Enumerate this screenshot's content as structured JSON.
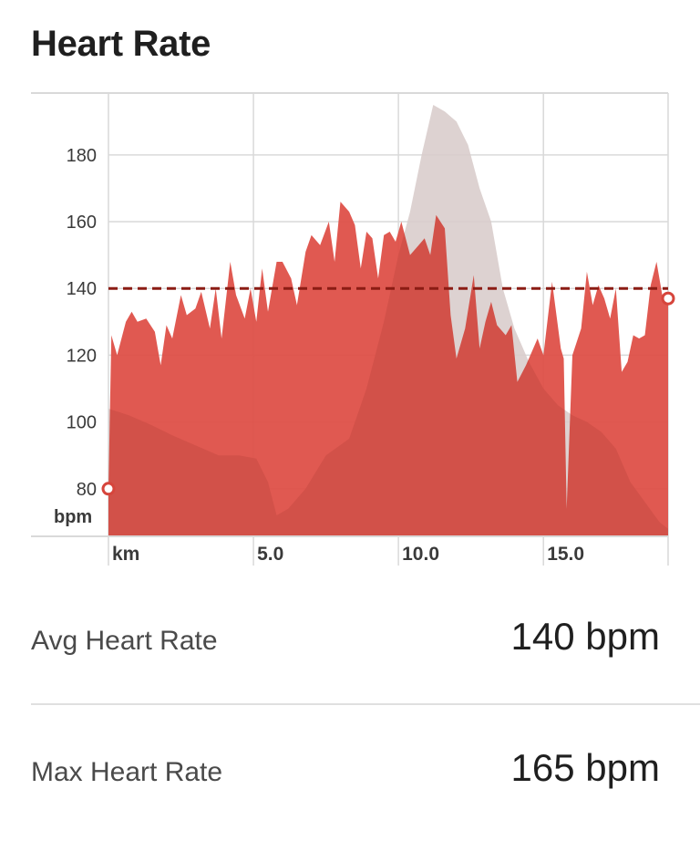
{
  "header": {
    "title": "Heart Rate"
  },
  "stats": [
    {
      "label": "Avg Heart Rate",
      "value": "140 bpm"
    },
    {
      "label": "Max Heart Rate",
      "value": "165 bpm"
    }
  ],
  "colors": {
    "hr_fill": "#de4c44",
    "elevation_fill": "#e8e8e8",
    "avg_line": "#8b1c14",
    "grid": "#d9d9d9",
    "marker_stroke": "#d6453c"
  },
  "chart_data": {
    "type": "area",
    "xlim": [
      0,
      19.3
    ],
    "ylim": [
      66,
      198
    ],
    "y_ticks": [
      "80",
      "100",
      "120",
      "140",
      "160",
      "180"
    ],
    "y_unit_label": "bpm",
    "x_unit_label": "km",
    "x_ticks": [
      "5.0",
      "10.0",
      "15.0"
    ],
    "avg_line": 140,
    "series": [
      {
        "values": [
          [
            0.0,
            80
          ],
          [
            0.1,
            126
          ],
          [
            0.3,
            120
          ],
          [
            0.6,
            130
          ],
          [
            0.8,
            133
          ],
          [
            1.0,
            130
          ],
          [
            1.3,
            131
          ],
          [
            1.6,
            127
          ],
          [
            1.8,
            117
          ],
          [
            2.0,
            129
          ],
          [
            2.2,
            125
          ],
          [
            2.5,
            138
          ],
          [
            2.7,
            132
          ],
          [
            3.0,
            134
          ],
          [
            3.2,
            139
          ],
          [
            3.5,
            128
          ],
          [
            3.7,
            140
          ],
          [
            3.9,
            125
          ],
          [
            4.2,
            148
          ],
          [
            4.4,
            138
          ],
          [
            4.7,
            131
          ],
          [
            4.9,
            140
          ],
          [
            5.1,
            130
          ],
          [
            5.3,
            146
          ],
          [
            5.5,
            133
          ],
          [
            5.8,
            148
          ],
          [
            6.0,
            148
          ],
          [
            6.3,
            143
          ],
          [
            6.5,
            135
          ],
          [
            6.8,
            151
          ],
          [
            7.0,
            156
          ],
          [
            7.3,
            153
          ],
          [
            7.6,
            160
          ],
          [
            7.8,
            148
          ],
          [
            8.0,
            166
          ],
          [
            8.3,
            163
          ],
          [
            8.5,
            159
          ],
          [
            8.7,
            146
          ],
          [
            8.9,
            157
          ],
          [
            9.1,
            155
          ],
          [
            9.3,
            143
          ],
          [
            9.5,
            156
          ],
          [
            9.7,
            157
          ],
          [
            9.9,
            154
          ],
          [
            10.1,
            160
          ],
          [
            10.4,
            150
          ],
          [
            10.7,
            153
          ],
          [
            10.9,
            155
          ],
          [
            11.1,
            150
          ],
          [
            11.3,
            162
          ],
          [
            11.6,
            158
          ],
          [
            11.8,
            132
          ],
          [
            12.0,
            119
          ],
          [
            12.3,
            128
          ],
          [
            12.6,
            144
          ],
          [
            12.8,
            122
          ],
          [
            13.0,
            130
          ],
          [
            13.2,
            136
          ],
          [
            13.4,
            129
          ],
          [
            13.7,
            126
          ],
          [
            13.9,
            129
          ],
          [
            14.1,
            112
          ],
          [
            14.4,
            117
          ],
          [
            14.8,
            125
          ],
          [
            15.0,
            120
          ],
          [
            15.3,
            142
          ],
          [
            15.6,
            122
          ],
          [
            15.7,
            119
          ],
          [
            15.8,
            74
          ],
          [
            16.0,
            120
          ],
          [
            16.3,
            128
          ],
          [
            16.5,
            145
          ],
          [
            16.7,
            135
          ],
          [
            16.9,
            141
          ],
          [
            17.1,
            137
          ],
          [
            17.3,
            131
          ],
          [
            17.5,
            140
          ],
          [
            17.7,
            115
          ],
          [
            17.9,
            118
          ],
          [
            18.1,
            126
          ],
          [
            18.3,
            125
          ],
          [
            18.5,
            126
          ],
          [
            18.7,
            141
          ],
          [
            18.9,
            148
          ],
          [
            19.1,
            138
          ],
          [
            19.3,
            137
          ]
        ]
      },
      {
        "values": [
          [
            0.0,
            104
          ],
          [
            0.7,
            102
          ],
          [
            1.5,
            99
          ],
          [
            2.2,
            96
          ],
          [
            3.0,
            93
          ],
          [
            3.8,
            90
          ],
          [
            4.5,
            90
          ],
          [
            5.1,
            89
          ],
          [
            5.5,
            82
          ],
          [
            5.8,
            72
          ],
          [
            6.2,
            74
          ],
          [
            6.8,
            80
          ],
          [
            7.5,
            90
          ],
          [
            8.3,
            95
          ],
          [
            8.9,
            110
          ],
          [
            9.5,
            130
          ],
          [
            10.0,
            150
          ],
          [
            10.4,
            163
          ],
          [
            10.8,
            180
          ],
          [
            11.2,
            195
          ],
          [
            11.6,
            193
          ],
          [
            12.0,
            190
          ],
          [
            12.4,
            183
          ],
          [
            12.8,
            170
          ],
          [
            13.2,
            160
          ],
          [
            13.6,
            140
          ],
          [
            14.0,
            128
          ],
          [
            14.5,
            118
          ],
          [
            15.0,
            110
          ],
          [
            15.5,
            105
          ],
          [
            16.0,
            102
          ],
          [
            16.5,
            100
          ],
          [
            17.0,
            97
          ],
          [
            17.5,
            92
          ],
          [
            18.0,
            82
          ],
          [
            18.5,
            76
          ],
          [
            19.0,
            70
          ],
          [
            19.3,
            68
          ]
        ]
      }
    ],
    "start_marker": [
      0.0,
      80
    ],
    "end_marker": [
      19.3,
      137
    ]
  }
}
